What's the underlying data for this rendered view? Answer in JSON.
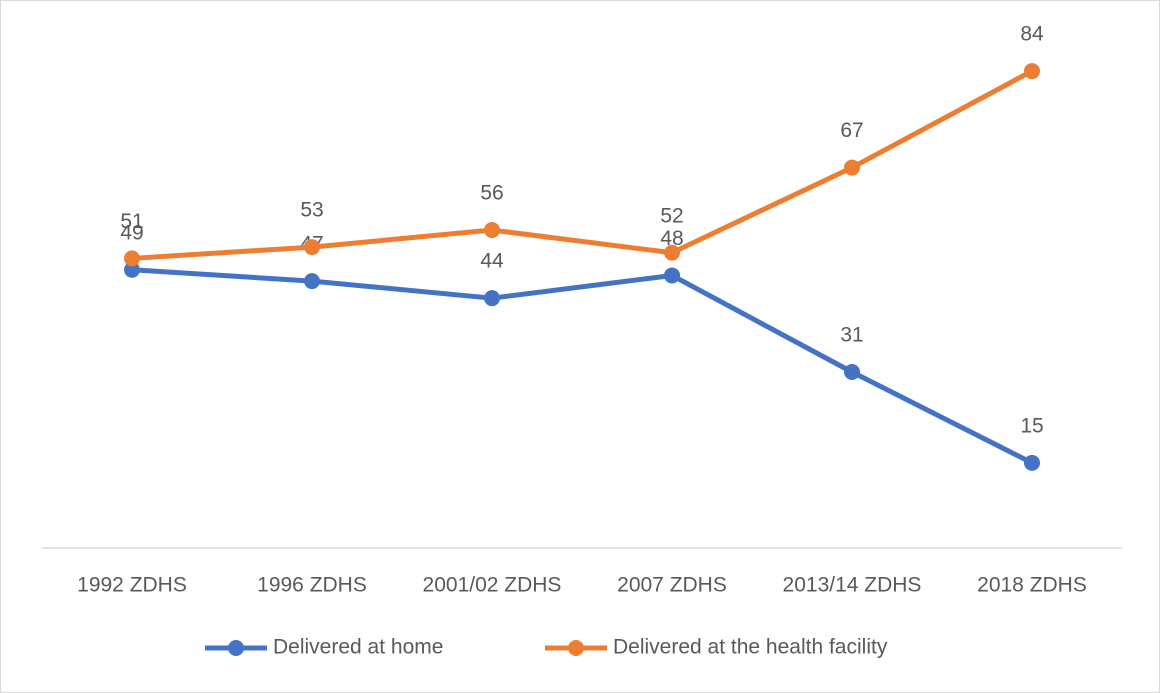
{
  "chart_data": {
    "type": "line",
    "categories": [
      "1992 ZDHS",
      "1996 ZDHS",
      "2001/02 ZDHS",
      "2007 ZDHS",
      "2013/14 ZDHS",
      "2018 ZDHS"
    ],
    "series": [
      {
        "name": "Delivered at home",
        "color": "#4472c4",
        "values": [
          49,
          47,
          44,
          48,
          31,
          15
        ]
      },
      {
        "name": "Delivered at the health facility",
        "color": "#ed7d31",
        "values": [
          51,
          53,
          56,
          52,
          67,
          84
        ]
      }
    ],
    "ylim": [
      0,
      90
    ],
    "legend": "bottom"
  }
}
